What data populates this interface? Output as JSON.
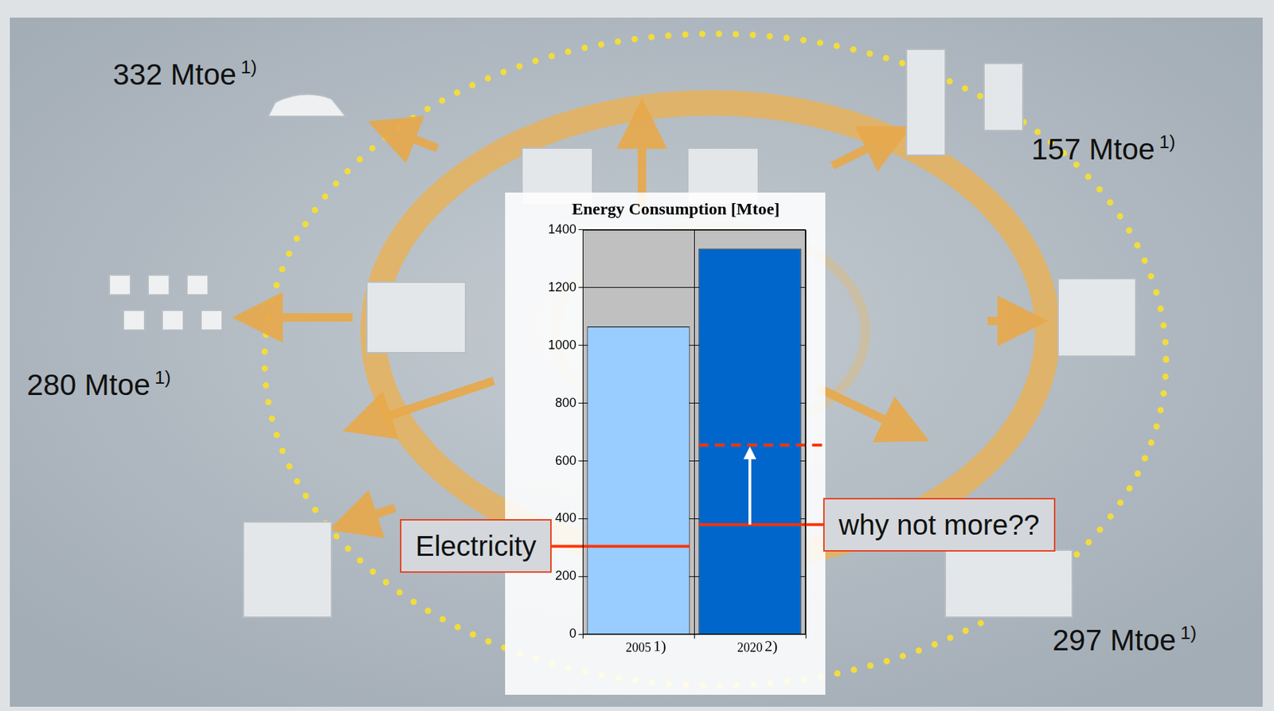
{
  "chart_data": {
    "type": "bar",
    "title": "Energy Consumption [Mtoe]",
    "categories": [
      "2005",
      "2020"
    ],
    "category_notes": [
      "1)",
      "2)"
    ],
    "values": [
      1065,
      1335
    ],
    "colors": [
      "#99ccff",
      "#0066cc"
    ],
    "ylim": [
      0,
      1400
    ],
    "yticks": [
      0,
      200,
      400,
      600,
      800,
      1000,
      1200,
      1400
    ],
    "grid": true,
    "electricity": {
      "label": "Electricity",
      "values": [
        305,
        380
      ],
      "color": "#ff3300"
    },
    "electricity_target": {
      "label": "why not more??",
      "value": 655,
      "category": "2020"
    },
    "annotations": [
      {
        "text": "332 Mtoe",
        "note": "1)"
      },
      {
        "text": "157 Mtoe",
        "note": "1)"
      },
      {
        "text": "280 Mtoe",
        "note": "1)"
      },
      {
        "text": "297 Mtoe",
        "note": "1)"
      }
    ]
  }
}
